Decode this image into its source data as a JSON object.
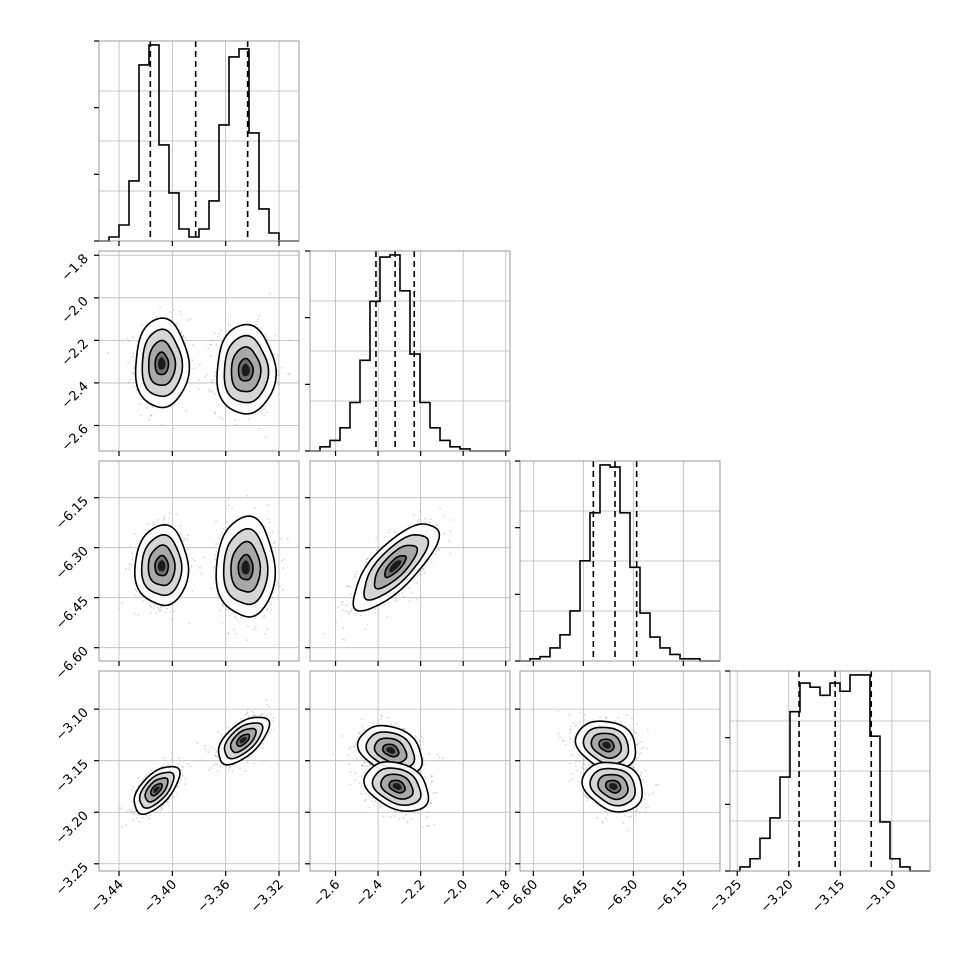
{
  "chart_data": {
    "type": "corner",
    "grid": true,
    "parameters": [
      {
        "ticks": [
          "−3.44",
          "−3.40",
          "−3.36",
          "−3.32"
        ],
        "tick_values": [
          -3.44,
          -3.4,
          -3.36,
          -3.32
        ],
        "range": [
          -3.455,
          -3.305
        ]
      },
      {
        "ticks": [
          "−2.6",
          "−2.4",
          "−2.2",
          "−2.0",
          "−1.8"
        ],
        "tick_values": [
          -2.6,
          -2.4,
          -2.2,
          -2.0,
          -1.8
        ],
        "range": [
          -2.72,
          -1.78
        ]
      },
      {
        "ticks": [
          "−6.60",
          "−6.45",
          "−6.30",
          "−6.15"
        ],
        "tick_values": [
          -6.6,
          -6.45,
          -6.3,
          -6.15
        ],
        "range": [
          -6.64,
          -6.04
        ]
      },
      {
        "ticks": [
          "−3.25",
          "−3.20",
          "−3.15",
          "−3.10"
        ],
        "tick_values": [
          -3.25,
          -3.2,
          -3.15,
          -3.1
        ],
        "range": [
          -3.257,
          -3.063
        ]
      }
    ],
    "quantiles": [
      [
        -3.4165,
        -3.3825,
        -3.3435
      ],
      [
        -2.41,
        -2.32,
        -2.23
      ],
      [
        -6.42,
        -6.355,
        -6.29
      ],
      [
        -3.19,
        -3.155,
        -3.12
      ]
    ],
    "histograms": [
      {
        "bin_edges": [
          -3.455,
          -3.4475,
          -3.44,
          -3.4325,
          -3.425,
          -3.4175,
          -3.41,
          -3.4025,
          -3.395,
          -3.3875,
          -3.38,
          -3.3725,
          -3.365,
          -3.3575,
          -3.35,
          -3.3425,
          -3.335,
          -3.3275,
          -3.32,
          -3.3125,
          -3.305
        ],
        "counts": [
          0,
          1,
          4,
          15,
          44,
          49,
          24,
          12,
          3,
          1,
          3,
          10,
          29,
          46,
          48,
          27,
          8,
          2,
          0,
          0
        ]
      },
      {
        "bin_edges": [
          -2.72,
          -2.673,
          -2.626,
          -2.579,
          -2.532,
          -2.485,
          -2.438,
          -2.391,
          -2.344,
          -2.297,
          -2.25,
          -2.203,
          -2.156,
          -2.109,
          -2.062,
          -2.015,
          -1.968,
          -1.921,
          -1.874,
          -1.827,
          -1.78
        ],
        "counts": [
          0,
          2,
          5,
          11,
          23,
          43,
          71,
          92,
          93,
          76,
          46,
          23,
          11,
          5,
          2,
          1,
          0,
          0,
          0,
          0
        ]
      },
      {
        "bin_edges": [
          -6.64,
          -6.61,
          -6.58,
          -6.55,
          -6.52,
          -6.49,
          -6.46,
          -6.43,
          -6.4,
          -6.37,
          -6.34,
          -6.31,
          -6.28,
          -6.25,
          -6.22,
          -6.19,
          -6.16,
          -6.13,
          -6.1,
          -6.07,
          -6.04
        ],
        "counts": [
          0,
          1,
          2,
          6,
          12,
          23,
          46,
          68,
          90,
          89,
          68,
          43,
          22,
          11,
          6,
          3,
          1,
          1,
          0,
          0
        ]
      },
      {
        "bin_edges": [
          -3.257,
          -3.2473,
          -3.2376,
          -3.2279,
          -3.2182,
          -3.2085,
          -3.1988,
          -3.1891,
          -3.1794,
          -3.1697,
          -3.16,
          -3.1503,
          -3.1406,
          -3.1309,
          -3.1212,
          -3.1115,
          -3.1018,
          -3.0921,
          -3.0824,
          -3.0727,
          -3.063
        ],
        "counts": [
          0,
          1,
          3,
          8,
          13,
          23,
          39,
          46,
          45,
          43,
          46,
          44,
          48,
          48,
          33,
          12,
          3,
          1,
          0,
          0
        ]
      }
    ],
    "hist2d": [
      {
        "x": 0,
        "y": 1,
        "modes": [
          {
            "center": [
              -3.408,
              -2.31
            ],
            "sd": [
              0.01,
              0.105
            ],
            "rho": 0.0
          },
          {
            "center": [
              -3.345,
              -2.34
            ],
            "sd": [
              0.011,
              0.105
            ],
            "rho": 0.0
          }
        ]
      },
      {
        "x": 0,
        "y": 2,
        "modes": [
          {
            "center": [
              -3.408,
              -6.355
            ],
            "sd": [
              0.01,
              0.06
            ],
            "rho": 0.0
          },
          {
            "center": [
              -3.345,
              -6.36
            ],
            "sd": [
              0.011,
              0.075
            ],
            "rho": 0.0
          }
        ]
      },
      {
        "x": 0,
        "y": 3,
        "modes": [
          {
            "center": [
              -3.412,
              -3.178
            ],
            "sd": [
              0.0085,
              0.0115
            ],
            "rho": 0.6
          },
          {
            "center": [
              -3.347,
              -3.13
            ],
            "sd": [
              0.0095,
              0.0115
            ],
            "rho": 0.6
          }
        ]
      },
      {
        "x": 1,
        "y": 2,
        "modes": [
          {
            "center": [
              -2.32,
              -6.355
            ],
            "sd": [
              0.1,
              0.065
            ],
            "rho": 0.75
          }
        ]
      },
      {
        "x": 1,
        "y": 3,
        "modes": [
          {
            "center": [
              -2.34,
              -3.14
            ],
            "sd": [
              0.075,
              0.012
            ],
            "rho": -0.3
          },
          {
            "center": [
              -2.31,
              -3.175
            ],
            "sd": [
              0.075,
              0.012
            ],
            "rho": -0.3
          }
        ]
      },
      {
        "x": 2,
        "y": 3,
        "modes": [
          {
            "center": [
              -6.38,
              -3.135
            ],
            "sd": [
              0.045,
              0.012
            ],
            "rho": -0.2
          },
          {
            "center": [
              -6.36,
              -3.175
            ],
            "sd": [
              0.045,
              0.012
            ],
            "rho": -0.2
          }
        ]
      }
    ]
  }
}
